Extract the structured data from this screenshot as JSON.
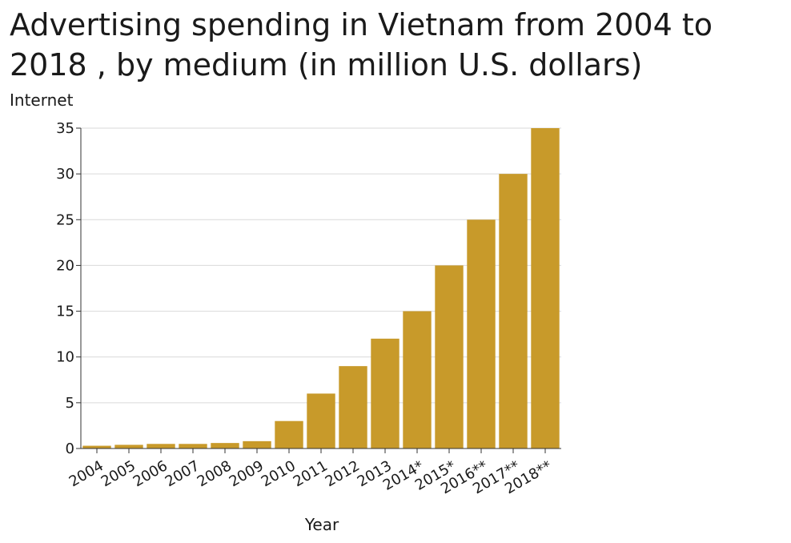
{
  "chart_data": {
    "type": "bar",
    "title": "Advertising spending in Vietnam from 2004 to 2018 , by medium (in million U.S. dollars)",
    "ylabel": "Internet",
    "xlabel": "Year",
    "categories": [
      "2004",
      "2005",
      "2006",
      "2007",
      "2008",
      "2009",
      "2010",
      "2011",
      "2012",
      "2013",
      "2014*",
      "2015*",
      "2016**",
      "2017**",
      "2018**"
    ],
    "values": [
      0.3,
      0.4,
      0.5,
      0.5,
      0.6,
      0.8,
      3,
      6,
      9,
      12,
      15,
      20,
      25,
      30,
      35
    ],
    "ylim": [
      0,
      35
    ],
    "yticks": [
      0,
      5,
      10,
      15,
      20,
      25,
      30,
      35
    ],
    "grid": true,
    "bar_color": "#c89a2a",
    "grid_color": "#d9d9d9"
  }
}
